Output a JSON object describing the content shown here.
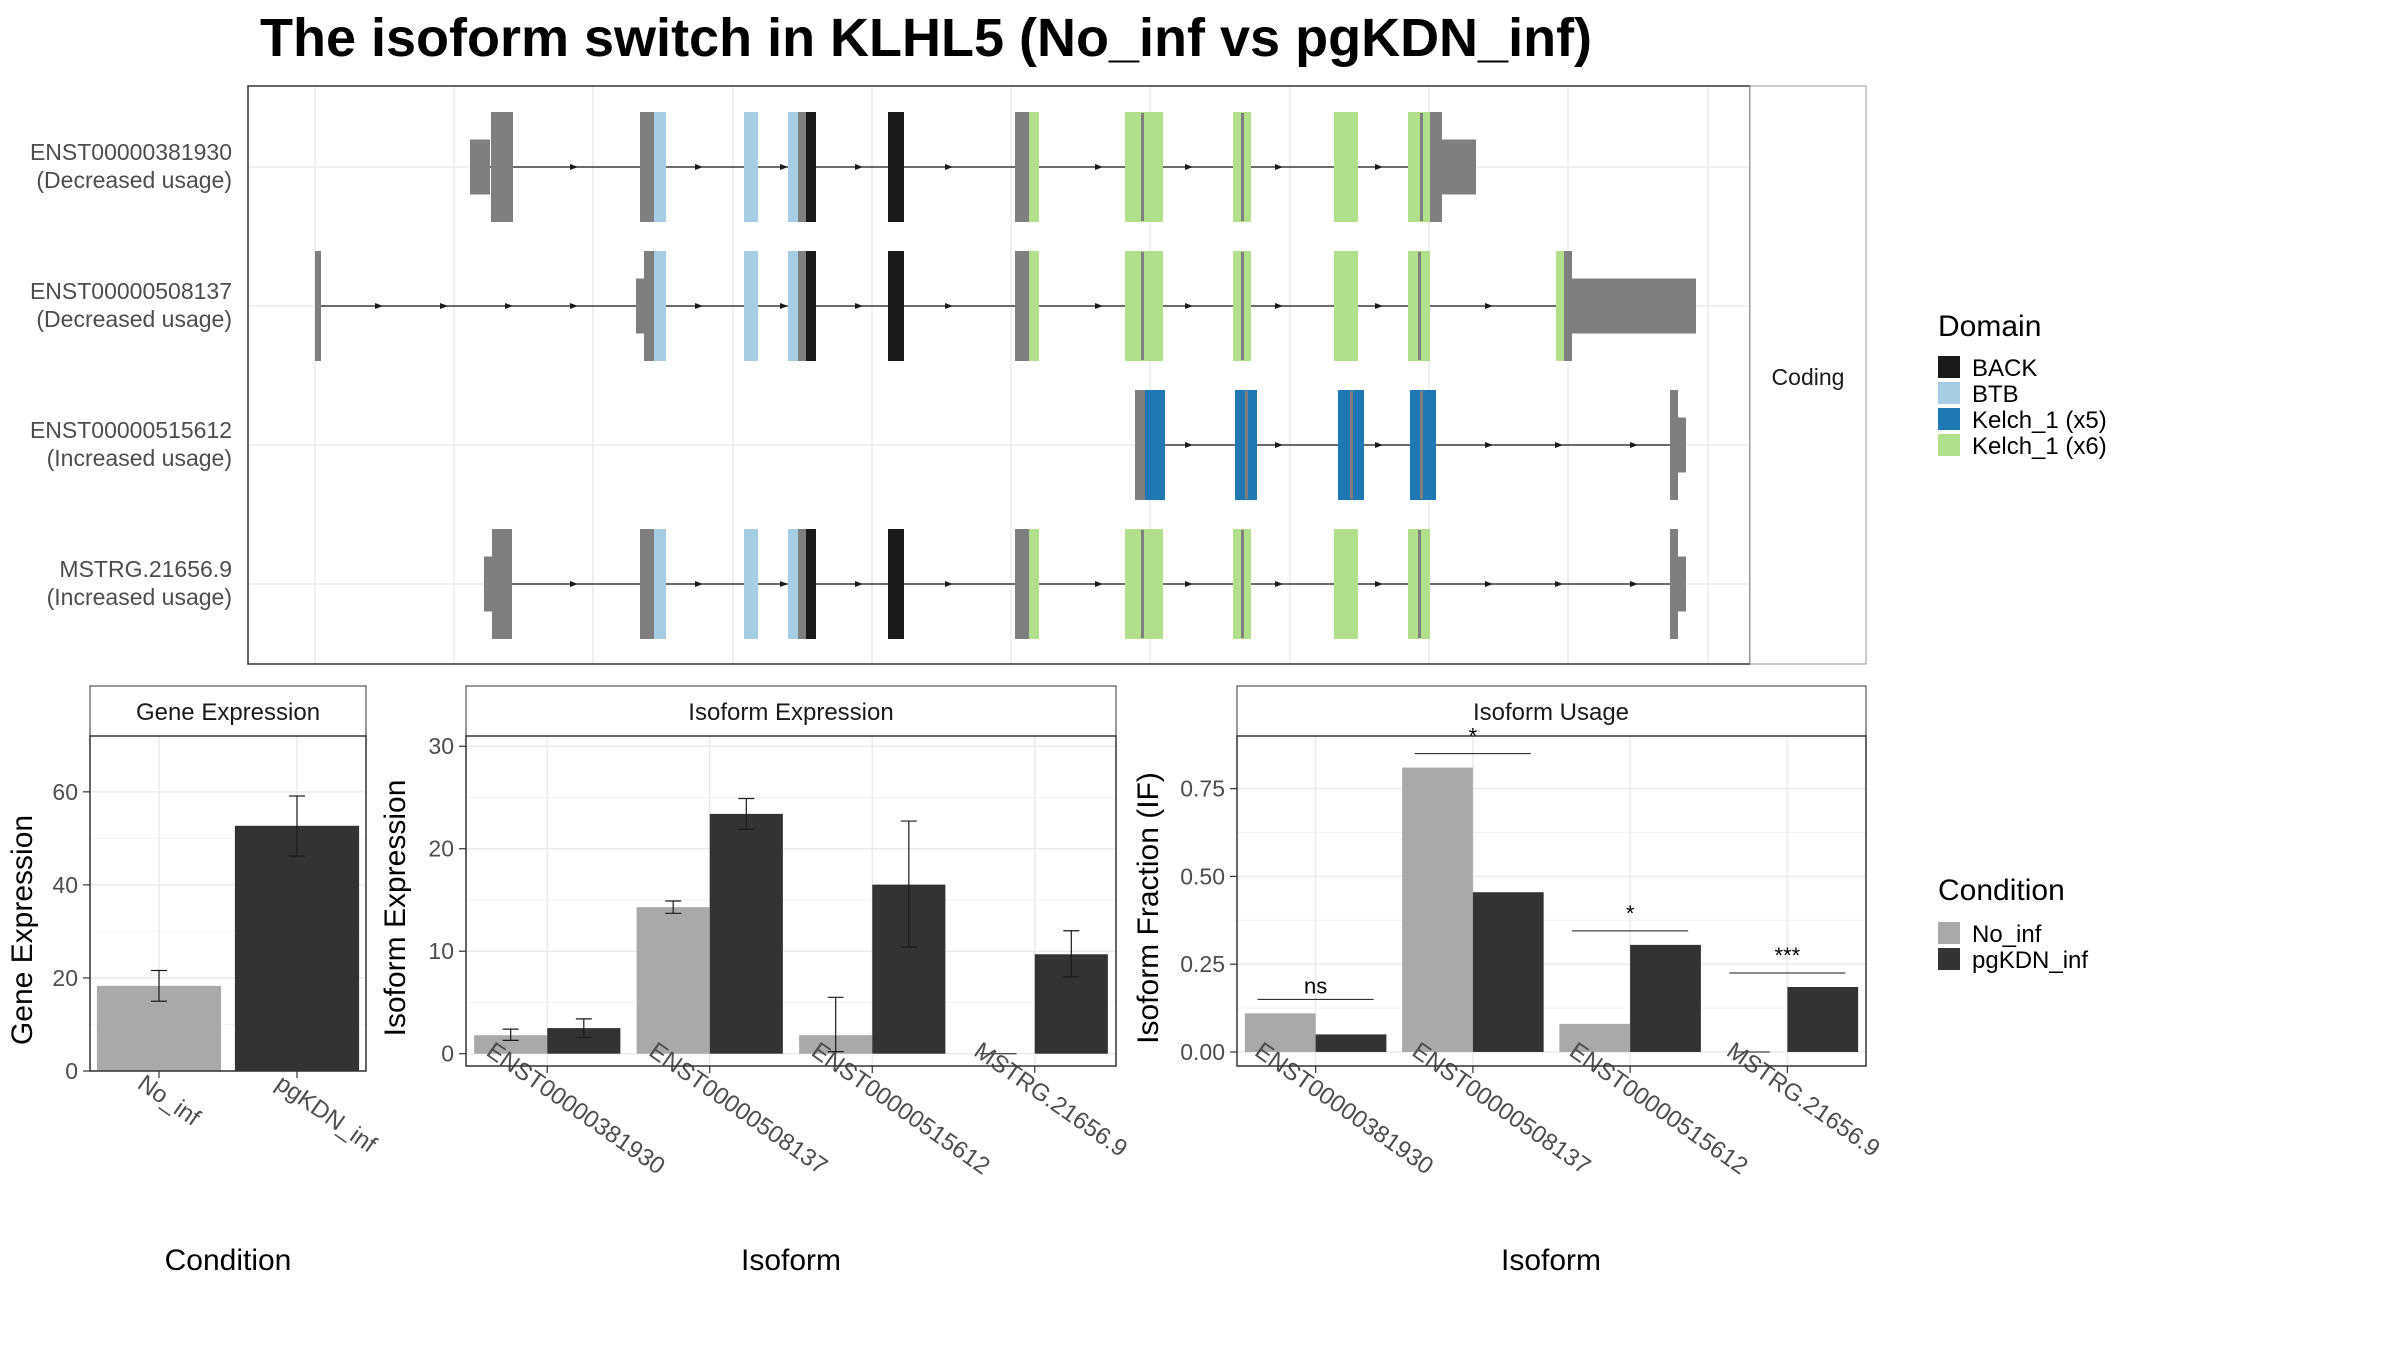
{
  "title": "The isoform switch in KLHL5 (No_inf vs pgKDN_inf)",
  "colors": {
    "BACK": "#1a1a1a",
    "BTB": "#a6cee3",
    "Kelch_1_x5": "#1f78b4",
    "Kelch_1_x6": "#b2df8a",
    "exon": "#7f7f7f",
    "No_inf": "#a9a9a9",
    "pgKDN_inf": "#333333"
  },
  "structure": {
    "facet_label": "Coding",
    "transcripts": [
      {
        "id": "ENST00000381930",
        "usage": "(Decreased usage)"
      },
      {
        "id": "ENST00000508137",
        "usage": "(Decreased usage)"
      },
      {
        "id": "ENST00000515612",
        "usage": "(Increased usage)"
      },
      {
        "id": "MSTRG.21656.9",
        "usage": "(Increased usage)"
      }
    ]
  },
  "domain_legend": {
    "title": "Domain",
    "items": [
      {
        "label": "BACK",
        "color": "#1a1a1a"
      },
      {
        "label": "BTB",
        "color": "#a6cee3"
      },
      {
        "label": "Kelch_1 (x5)",
        "color": "#1f78b4"
      },
      {
        "label": "Kelch_1 (x6)",
        "color": "#b2df8a"
      }
    ]
  },
  "condition_legend": {
    "title": "Condition",
    "items": [
      {
        "label": "No_inf",
        "color": "#a9a9a9"
      },
      {
        "label": "pgKDN_inf",
        "color": "#333333"
      }
    ]
  },
  "chart_data": [
    {
      "type": "bar",
      "title": "Gene Expression",
      "xlabel": "Condition",
      "ylabel": "Gene Expression",
      "ylim": [
        0,
        72
      ],
      "yticks": [
        0,
        20,
        40,
        60
      ],
      "categories": [
        "No_inf",
        "pgKDN_inf"
      ],
      "values": [
        18.3,
        52.7
      ],
      "errors": [
        [
          15.0,
          21.6
        ],
        [
          46.2,
          59.1
        ]
      ]
    },
    {
      "type": "bar",
      "title": "Isoform Expression",
      "xlabel": "Isoform",
      "ylabel": "Isoform Expression",
      "ylim": [
        -1.2,
        31
      ],
      "yticks": [
        0,
        10,
        20,
        30
      ],
      "categories": [
        "ENST00000381930",
        "ENST00000508137",
        "ENST00000515612",
        "MSTRG.21656.9"
      ],
      "series": [
        {
          "name": "No_inf",
          "values": [
            1.8,
            14.3,
            1.8,
            0.0
          ],
          "errors": [
            [
              1.3,
              2.4
            ],
            [
              13.7,
              14.9
            ],
            [
              0.2,
              5.5
            ],
            [
              0.0,
              0.0
            ]
          ]
        },
        {
          "name": "pgKDN_inf",
          "values": [
            2.5,
            23.4,
            16.5,
            9.7
          ],
          "errors": [
            [
              1.6,
              3.4
            ],
            [
              21.9,
              24.9
            ],
            [
              10.4,
              22.7
            ],
            [
              7.5,
              12.0
            ]
          ]
        }
      ]
    },
    {
      "type": "bar",
      "title": "Isoform Usage",
      "xlabel": "Isoform",
      "ylabel": "Isoform Fraction (IF)",
      "ylim": [
        -0.04,
        0.9
      ],
      "yticks": [
        0.0,
        0.25,
        0.5,
        0.75
      ],
      "ytick_labels": [
        "0.00",
        "0.25",
        "0.50",
        "0.75"
      ],
      "categories": [
        "ENST00000381930",
        "ENST00000508137",
        "ENST00000515612",
        "MSTRG.21656.9"
      ],
      "series": [
        {
          "name": "No_inf",
          "values": [
            0.11,
            0.81,
            0.08,
            0.0
          ]
        },
        {
          "name": "pgKDN_inf",
          "values": [
            0.05,
            0.455,
            0.305,
            0.185
          ]
        }
      ],
      "significance": [
        "ns",
        "*",
        "*",
        "***"
      ]
    }
  ]
}
